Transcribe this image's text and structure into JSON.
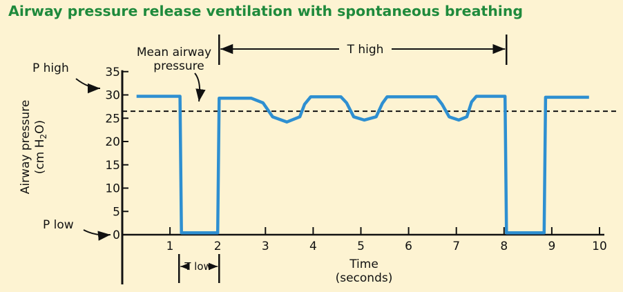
{
  "chart_data": {
    "type": "line",
    "title": "Airway pressure release ventilation with spontaneous breathing",
    "ylabel": "Airway pressure",
    "ylabel_unit": [
      "(cm H",
      "2",
      "O)"
    ],
    "xlabel": "Time",
    "xlabel_unit": "(seconds)",
    "xlim": [
      0,
      10
    ],
    "ylim": [
      0,
      35
    ],
    "x_ticks": [
      1,
      2,
      3,
      4,
      5,
      6,
      7,
      8,
      9,
      10
    ],
    "y_ticks": [
      0,
      5,
      10,
      15,
      20,
      25,
      30,
      35
    ],
    "series": [
      {
        "points": [
          [
            0.3,
            29.7
          ],
          [
            1.21,
            29.7
          ],
          [
            1.24,
            0.4
          ],
          [
            2.0,
            0.4
          ],
          [
            2.03,
            29.3
          ],
          [
            2.7,
            29.3
          ],
          [
            2.95,
            28.3
          ],
          [
            3.15,
            25.3
          ],
          [
            3.45,
            24.2
          ],
          [
            3.72,
            25.3
          ],
          [
            3.82,
            28.0
          ],
          [
            3.95,
            29.6
          ],
          [
            4.58,
            29.6
          ],
          [
            4.7,
            28.3
          ],
          [
            4.85,
            25.3
          ],
          [
            5.07,
            24.6
          ],
          [
            5.32,
            25.3
          ],
          [
            5.45,
            28.2
          ],
          [
            5.55,
            29.6
          ],
          [
            6.58,
            29.6
          ],
          [
            6.7,
            28.0
          ],
          [
            6.85,
            25.3
          ],
          [
            7.05,
            24.6
          ],
          [
            7.22,
            25.3
          ],
          [
            7.32,
            28.5
          ],
          [
            7.42,
            29.7
          ],
          [
            8.02,
            29.7
          ],
          [
            8.05,
            0.4
          ],
          [
            8.84,
            0.4
          ],
          [
            8.87,
            29.5
          ],
          [
            9.78,
            29.5
          ]
        ]
      }
    ],
    "mean_line": 26.5,
    "annotations": {
      "p_high": "P high",
      "p_low": "P low",
      "mean_airway_line1": "Mean airway",
      "mean_airway_line2": "pressure",
      "t_high": "T high",
      "t_low": "T low"
    },
    "colors": {
      "line": "#2e8fd1",
      "title": "#1f8a3c",
      "background": "#fdf3d2"
    },
    "grid": false
  }
}
